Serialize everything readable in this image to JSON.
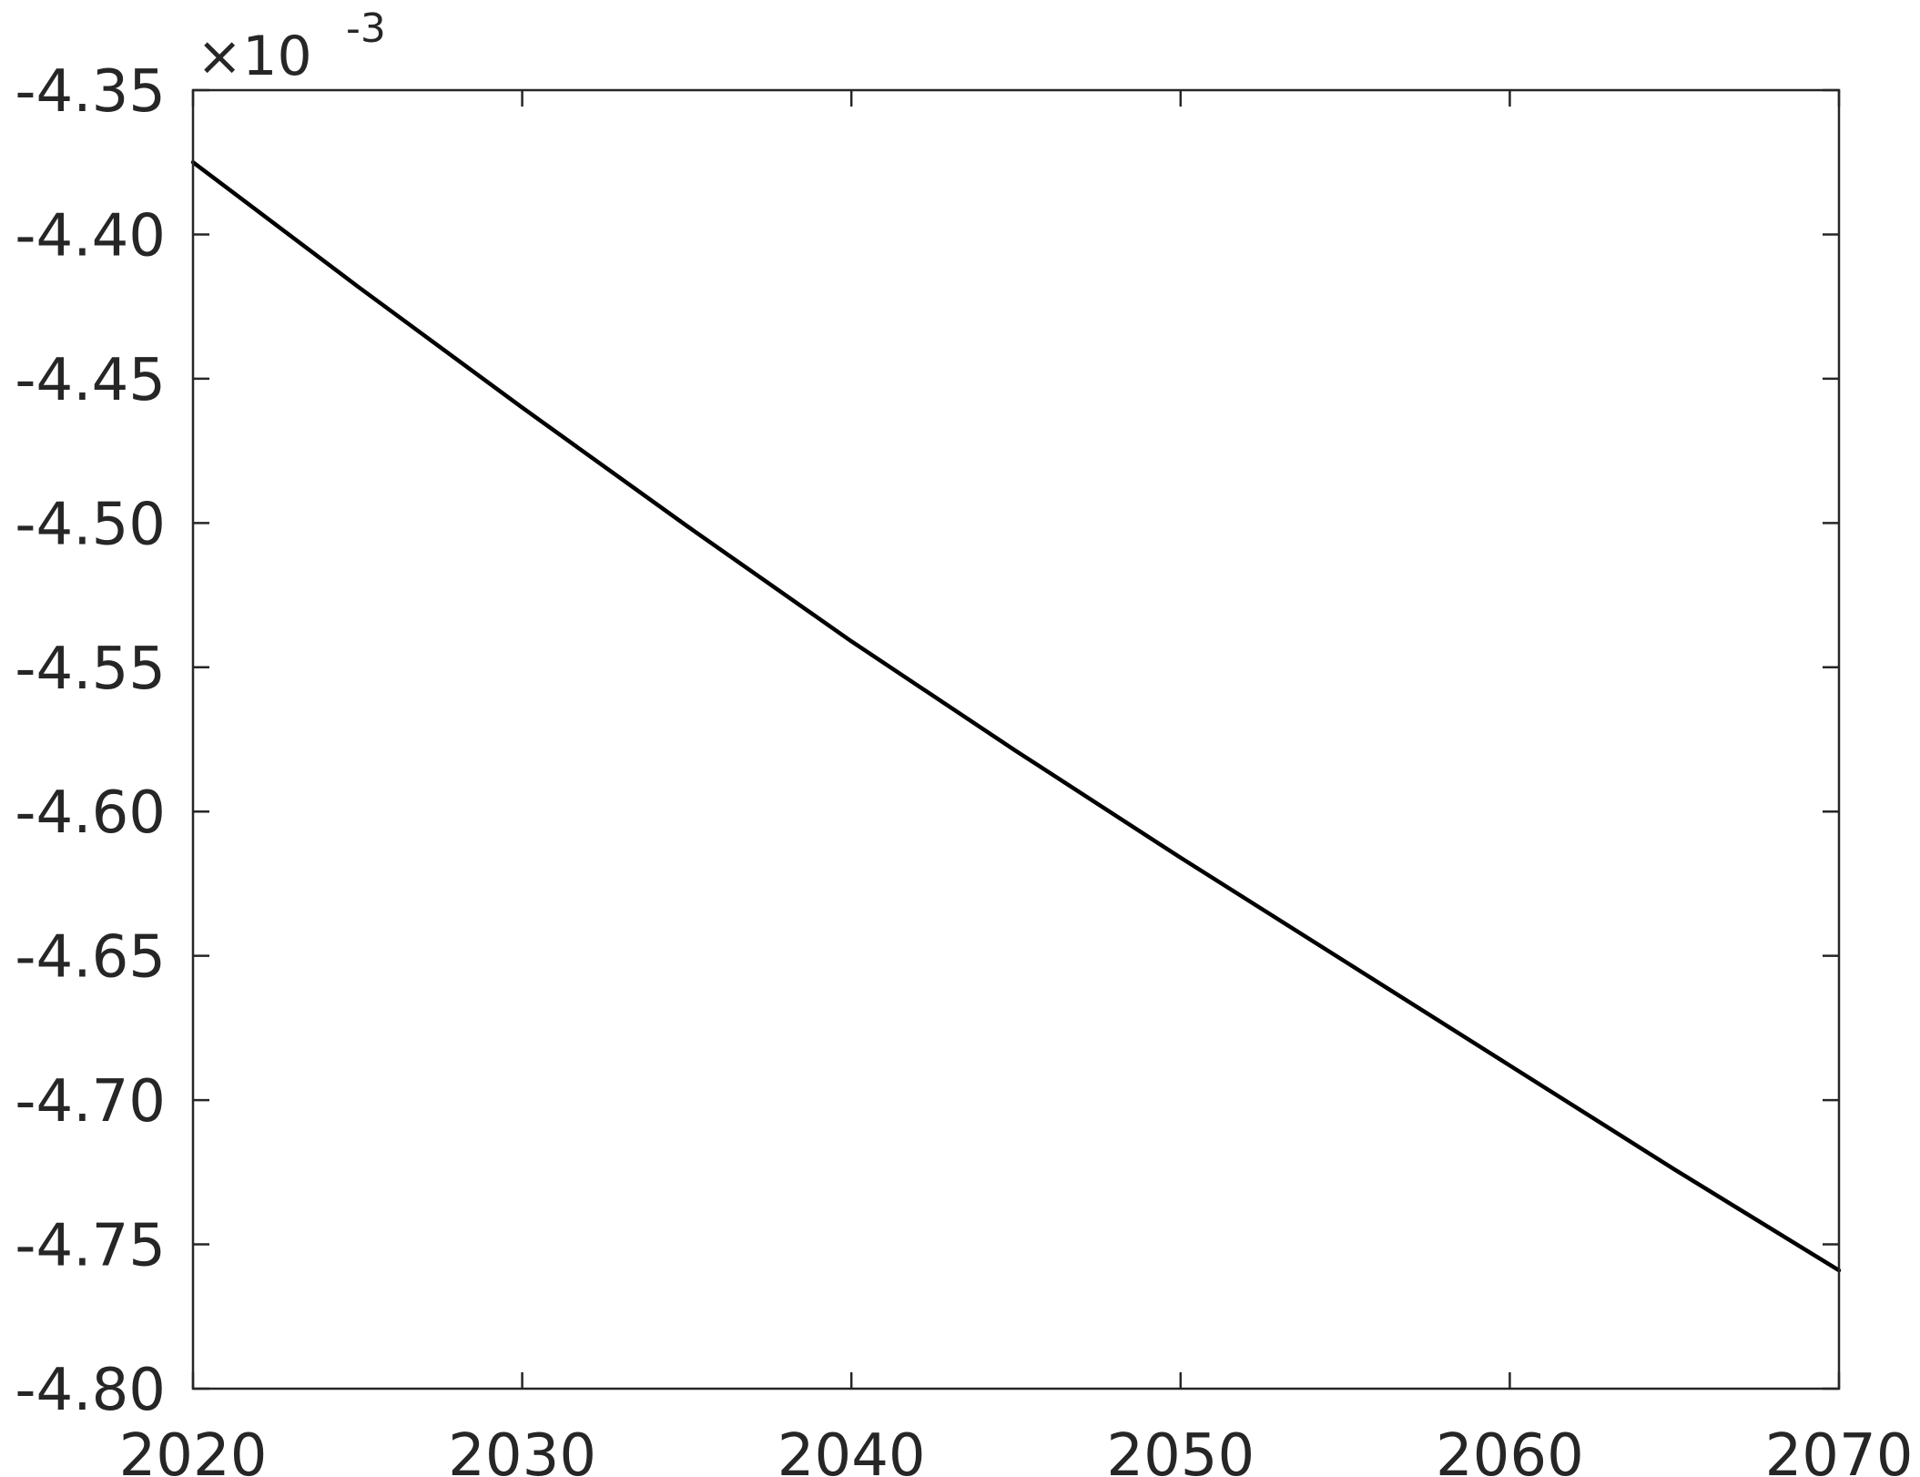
{
  "chart_data": {
    "type": "line",
    "title": "",
    "xlabel": "",
    "ylabel": "",
    "xlim": [
      2020,
      2070
    ],
    "ylim": [
      -4.8,
      -4.35
    ],
    "y_multiplier": "×10",
    "y_multiplier_exponent": "-3",
    "grid": false,
    "legend": "none",
    "xticks": [
      "2020",
      "2030",
      "2040",
      "2050",
      "2060",
      "2070"
    ],
    "xtick_values": [
      2020,
      2030,
      2040,
      2050,
      2060,
      2070
    ],
    "yticks": [
      "-4.35",
      "-4.40",
      "-4.45",
      "-4.50",
      "-4.55",
      "-4.60",
      "-4.65",
      "-4.70",
      "-4.75",
      "-4.80"
    ],
    "ytick_values": [
      -4.35,
      -4.4,
      -4.45,
      -4.5,
      -4.55,
      -4.6,
      -4.65,
      -4.7,
      -4.75,
      -4.8
    ],
    "series": [
      {
        "color": "#000000",
        "x": [
          2020,
          2025,
          2030,
          2035,
          2040,
          2045,
          2050,
          2055,
          2060,
          2065,
          2070
        ],
        "y": [
          -4.375,
          -4.418,
          -4.46,
          -4.501,
          -4.541,
          -4.579,
          -4.616,
          -4.652,
          -4.688,
          -4.724,
          -4.759
        ]
      }
    ]
  }
}
